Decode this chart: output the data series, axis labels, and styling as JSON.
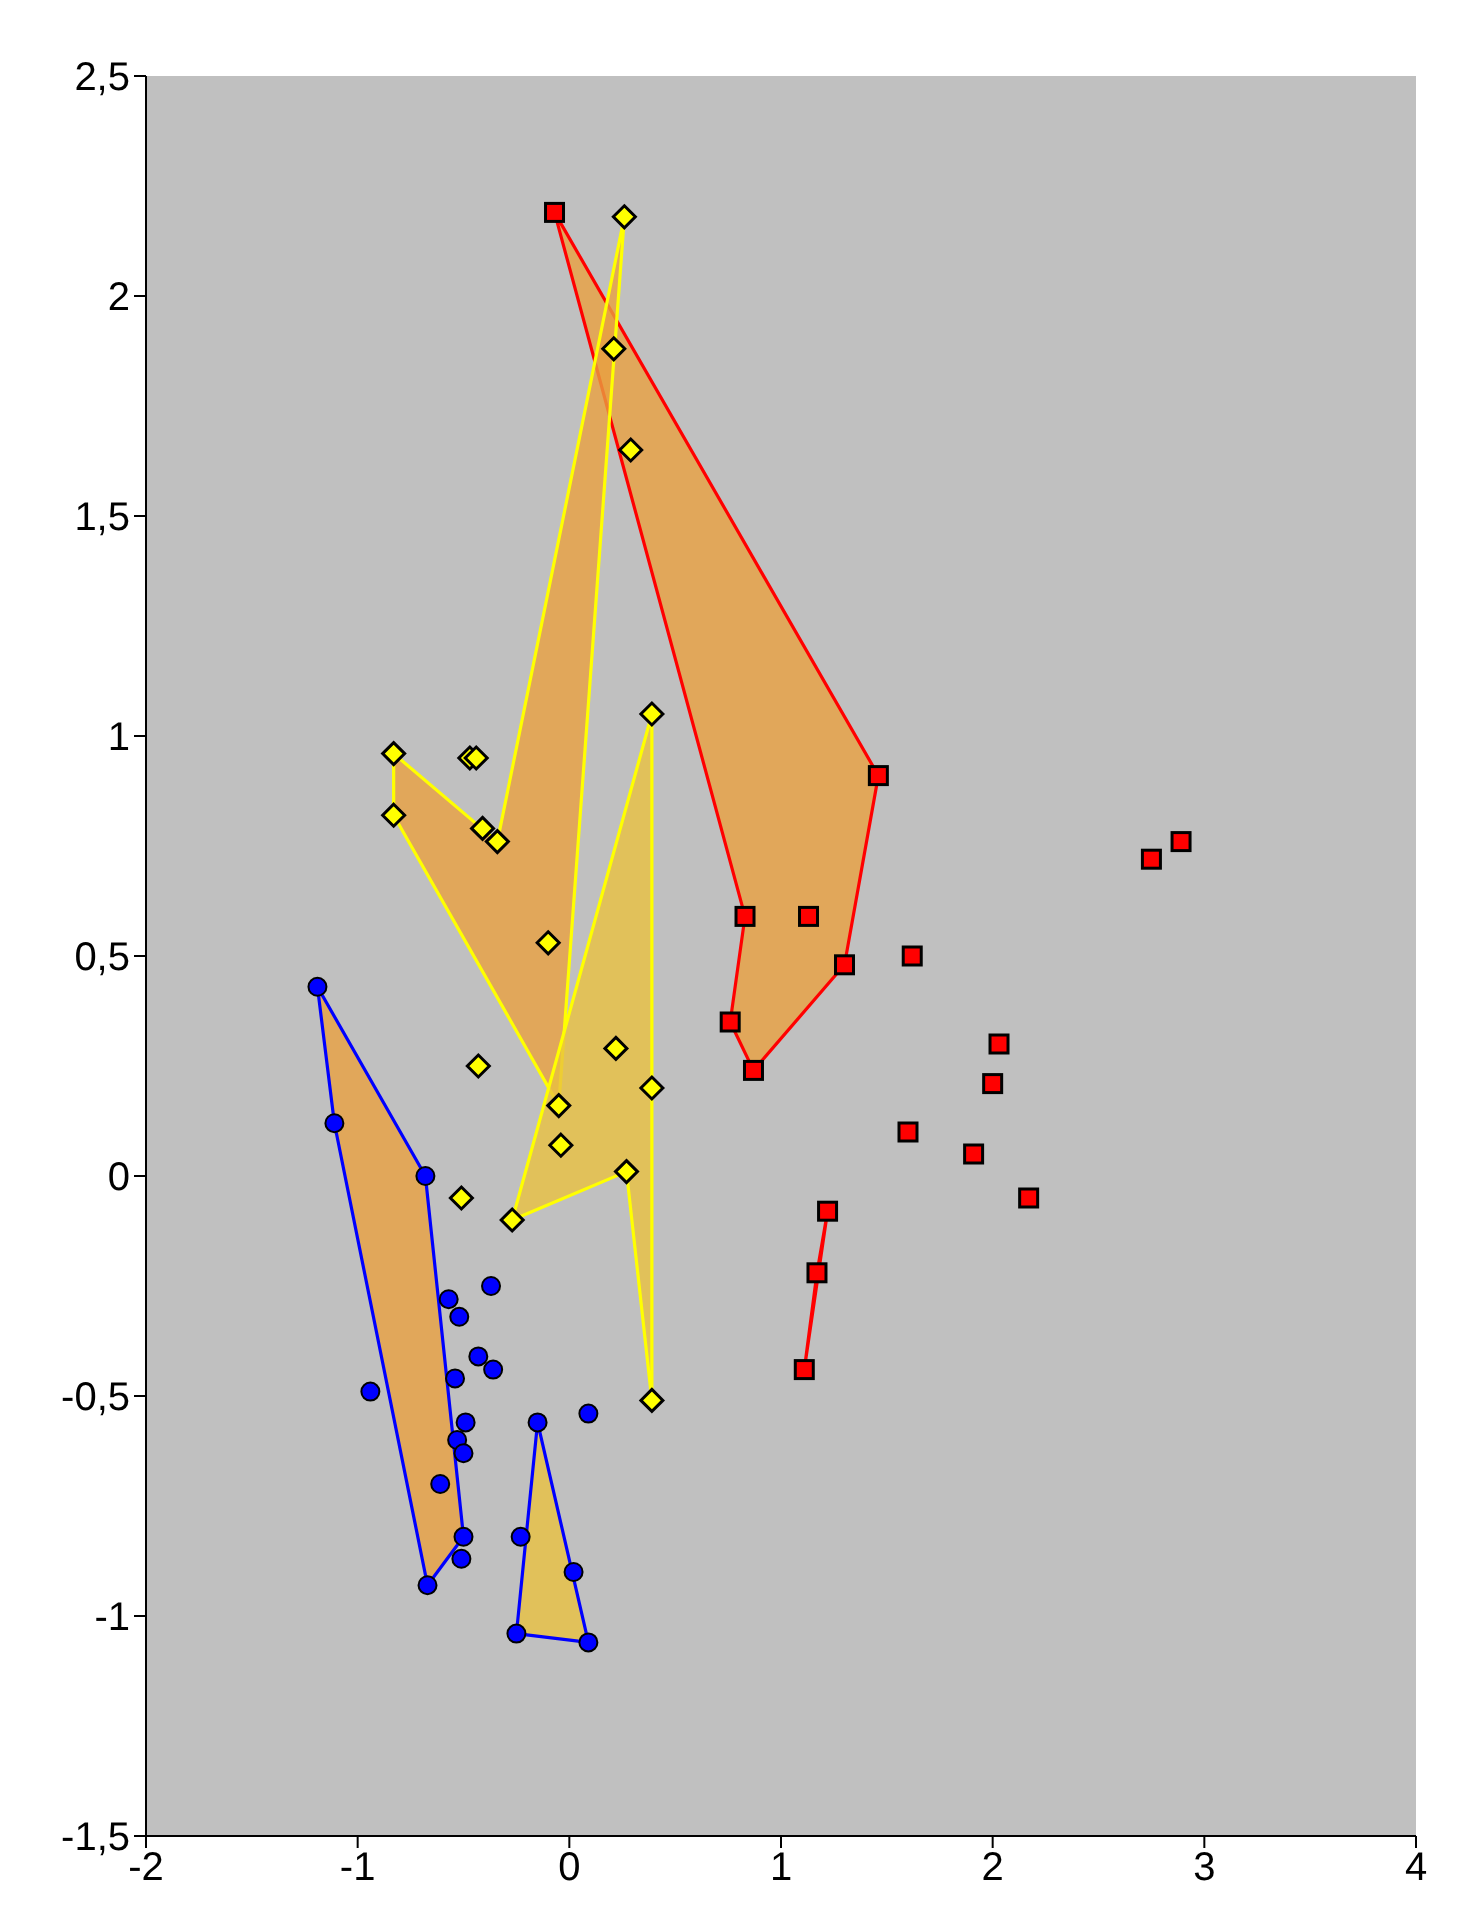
{
  "chart_data": {
    "type": "scatter",
    "xlim": [
      -2,
      4
    ],
    "xticks": [
      -2,
      -1,
      0,
      1,
      2,
      3,
      4
    ],
    "ylim": [
      -1.5,
      2.5
    ],
    "yticks": [
      {
        "value": -1.5,
        "label": "-1,5"
      },
      -1,
      {
        "value": -0.5,
        "label": "-0,5"
      },
      0,
      {
        "value": 0.5,
        "label": "0,5"
      },
      1,
      {
        "value": 1.5,
        "label": "1,5"
      },
      2,
      {
        "value": 2.5,
        "label": "2,5"
      }
    ],
    "series": [
      {
        "type": "scatter",
        "marker": "square",
        "color": "#ff0000",
        "x": [
          -0.07,
          1.46,
          0.83,
          1.13,
          1.3,
          0.76,
          0.87,
          1.62,
          2.03,
          2.0,
          1.6,
          1.91,
          2.17,
          2.75,
          2.89,
          1.22,
          1.17,
          1.11
        ],
        "values": [
          2.19,
          0.91,
          0.59,
          0.59,
          0.48,
          0.35,
          0.24,
          0.5,
          0.3,
          0.21,
          0.1,
          0.05,
          -0.05,
          0.72,
          0.76,
          -0.08,
          -0.22,
          -0.44
        ]
      },
      {
        "type": "scatter",
        "marker": "diamond",
        "color": "#ffff00",
        "x": [
          0.26,
          0.21,
          0.29,
          0.39,
          -0.83,
          -0.83,
          -0.47,
          -0.44,
          -0.41,
          -0.34,
          -0.1,
          0.22,
          -0.43,
          -0.05,
          0.39,
          -0.04,
          0.27,
          -0.51,
          -0.27,
          0.39
        ],
        "values": [
          2.18,
          1.88,
          1.65,
          1.05,
          0.96,
          0.82,
          0.95,
          0.95,
          0.79,
          0.76,
          0.53,
          0.29,
          0.25,
          0.16,
          0.2,
          0.07,
          0.01,
          -0.05,
          -0.1,
          -0.51
        ]
      },
      {
        "type": "scatter",
        "marker": "circle",
        "color": "#0000ff",
        "x": [
          -1.19,
          -1.11,
          -0.68,
          -0.57,
          -0.52,
          -0.37,
          -0.43,
          -0.36,
          -0.94,
          -0.54,
          -0.49,
          -0.53,
          -0.5,
          -0.61,
          -0.5,
          -0.51,
          -0.67,
          -0.15,
          0.09,
          -0.23,
          0.02,
          -0.25,
          0.09
        ],
        "values": [
          0.43,
          0.12,
          0.0,
          -0.28,
          -0.32,
          -0.25,
          -0.41,
          -0.44,
          -0.49,
          -0.46,
          -0.56,
          -0.6,
          -0.63,
          -0.7,
          -0.82,
          -0.87,
          -0.93,
          -0.56,
          -0.54,
          -0.82,
          -0.9,
          -1.04,
          -1.06
        ]
      },
      {
        "type": "area",
        "color": "#e8a040",
        "colors": [
          "#ff0000",
          "#ff0000",
          "#ff0000",
          "#ff0000",
          "#ff0000",
          "#ff0000"
        ],
        "x": [
          -0.07,
          1.46,
          1.3,
          0.87,
          0.76,
          0.83
        ],
        "values": [
          2.19,
          0.91,
          0.48,
          0.24,
          0.35,
          0.59
        ]
      },
      {
        "type": "area",
        "color": "#e8a040",
        "colors": [
          "#ff0000",
          "#ff0000",
          "#ff0000"
        ],
        "x": [
          1.22,
          1.17,
          1.11
        ],
        "values": [
          -0.08,
          -0.22,
          -0.44
        ]
      },
      {
        "type": "area",
        "color": "#e8a040",
        "colors": [
          "#ffff00",
          "#ffff00",
          "#ffff00",
          "#ffff00",
          "#ffff00"
        ],
        "x": [
          0.26,
          -0.34,
          -0.83,
          -0.83,
          -0.05
        ],
        "values": [
          2.18,
          0.76,
          0.96,
          0.82,
          0.16
        ]
      },
      {
        "type": "area",
        "color": "#e8c040",
        "colors": [
          "#ffff00",
          "#ffff00",
          "#ffff00",
          "#ffff00"
        ],
        "x": [
          0.39,
          0.39,
          0.27,
          -0.27
        ],
        "values": [
          1.05,
          -0.51,
          0.01,
          -0.1
        ]
      },
      {
        "type": "area",
        "color": "#e8a040",
        "colors": [
          "#0000ff",
          "#0000ff",
          "#0000ff",
          "#0000ff",
          "#0000ff"
        ],
        "x": [
          -1.19,
          -0.68,
          -0.5,
          -0.67,
          -1.11
        ],
        "values": [
          0.43,
          0.0,
          -0.82,
          -0.93,
          0.12
        ]
      },
      {
        "type": "area",
        "color": "#e8c040",
        "colors": [
          "#0000ff",
          "#0000ff",
          "#0000ff"
        ],
        "x": [
          -0.15,
          0.09,
          -0.25
        ],
        "values": [
          -0.56,
          -1.06,
          -1.04
        ]
      }
    ]
  }
}
